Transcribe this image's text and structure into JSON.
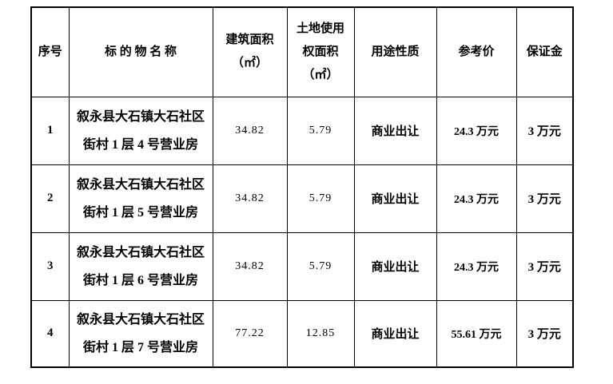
{
  "table": {
    "headers": {
      "serial": {
        "lines": [
          "序号"
        ]
      },
      "name": {
        "lines": [
          "标 的 物 名 称"
        ]
      },
      "building_area": {
        "lines": [
          "建筑面积",
          "（㎡）"
        ]
      },
      "land_area": {
        "lines": [
          "土地使用",
          "权面积",
          "（㎡）"
        ]
      },
      "usage": {
        "lines": [
          "用途性质"
        ]
      },
      "price": {
        "lines": [
          "参考价"
        ]
      },
      "deposit": {
        "lines": [
          "保证金"
        ]
      }
    },
    "rows": [
      {
        "no": "1",
        "name_lines": [
          "叙永县大石镇大石社区",
          "街村 1 层 4 号营业房"
        ],
        "building_area": "34.82",
        "land_area": "5.79",
        "usage": "商业出让",
        "ref_price": "24.3 万元",
        "deposit": "3 万元"
      },
      {
        "no": "2",
        "name_lines": [
          "叙永县大石镇大石社区",
          "街村 1 层 5 号营业房"
        ],
        "building_area": "34.82",
        "land_area": "5.79",
        "usage": "商业出让",
        "ref_price": "24.3 万元",
        "deposit": "3 万元"
      },
      {
        "no": "3",
        "name_lines": [
          "叙永县大石镇大石社区",
          "街村 1 层 6 号营业房"
        ],
        "building_area": "34.82",
        "land_area": "5.79",
        "usage": "商业出让",
        "ref_price": "24.3 万元",
        "deposit": "3 万元"
      },
      {
        "no": "4",
        "name_lines": [
          "叙永县大石镇大石社区",
          "街村 1 层 7 号营业房"
        ],
        "building_area": "77.22",
        "land_area": "12.85",
        "usage": "商业出让",
        "ref_price": "55.61 万元",
        "deposit": "3 万元"
      }
    ]
  }
}
